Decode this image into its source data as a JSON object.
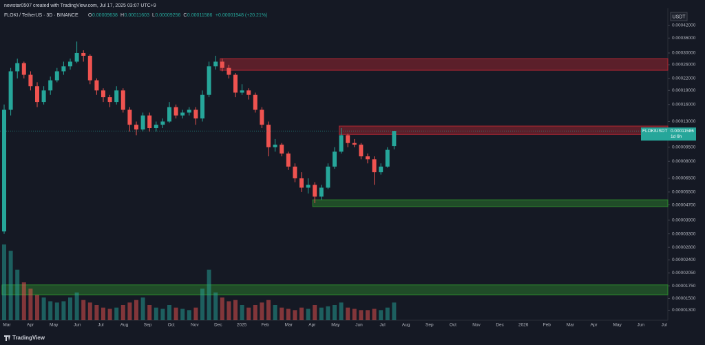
{
  "chart_data": {
    "type": "candlestick",
    "credit": "newstar0507 created with TradingView.com, Jul 17, 2025 03:07 UTC+9",
    "title": "FLOKI / TetherUS · 3D · BINANCE",
    "legend": [
      [
        "O",
        "0.00009638"
      ],
      [
        "H",
        "0.00011603"
      ],
      [
        "L",
        "0.00009256"
      ],
      [
        "C",
        "0.00011586"
      ],
      [
        "",
        "+0.00001948 (+20.21%)"
      ]
    ],
    "currency": "USDT",
    "brand": "TradingView",
    "price_label": {
      "symbol": "FLOKIUSDT",
      "value": {
        "value": 0.00011586,
        "label": "0.00011586"
      },
      "countdown": "1d 6h"
    },
    "log_scale": true,
    "grid": false,
    "up_color": "#26a69a",
    "down_color": "#ef5350",
    "ylim": [
      1.17e-05,
      0.000505
    ],
    "yticks": [
      {
        "value": 0.00042,
        "label": "0.00042000"
      },
      {
        "value": 0.00036,
        "label": "0.00036000"
      },
      {
        "value": 0.0003,
        "label": "0.00030000"
      },
      {
        "value": 0.00026,
        "label": "0.00026000"
      },
      {
        "value": 0.00022,
        "label": "0.00022000"
      },
      {
        "value": 0.00019,
        "label": "0.00019000"
      },
      {
        "value": 0.00016,
        "label": "0.00016000"
      },
      {
        "value": 0.00013,
        "label": "0.00013000"
      },
      {
        "value": 9.5e-05,
        "label": "0.00009500"
      },
      {
        "value": 8e-05,
        "label": "0.00008000"
      },
      {
        "value": 6.5e-05,
        "label": "0.00006500"
      },
      {
        "value": 5.5e-05,
        "label": "0.00005500"
      },
      {
        "value": 4.7e-05,
        "label": "0.00004700"
      },
      {
        "value": 3.9e-05,
        "label": "0.00003900"
      },
      {
        "value": 3.3e-05,
        "label": "0.00003300"
      },
      {
        "value": 2.8e-05,
        "label": "0.00002800"
      },
      {
        "value": 2.4e-05,
        "label": "0.00002400"
      },
      {
        "value": 2.05e-05,
        "label": "0.00002050"
      },
      {
        "value": 1.75e-05,
        "label": "0.00001750"
      },
      {
        "value": 1.5e-05,
        "label": "0.00001500"
      },
      {
        "value": 1.3e-05,
        "label": "0.00001300"
      }
    ],
    "categories": [
      "Mar",
      "Apr",
      "May",
      "Jun",
      "Jul",
      "Aug",
      "Sep",
      "Oct",
      "Nov",
      "Dec",
      "2025",
      "Feb",
      "Mar",
      "Apr",
      "May",
      "Jun",
      "Jul",
      "Aug",
      "Sep",
      "Oct",
      "Nov",
      "Dec",
      "2026",
      "Feb",
      "Mar",
      "Apr",
      "May",
      "Jun",
      "Jul"
    ],
    "candles": [
      [
        3.4e-05,
        0.00016,
        3.3e-05,
        0.00015
      ],
      [
        0.00015,
        0.00025,
        0.00014,
        0.00024
      ],
      [
        0.00024,
        0.00028,
        0.00022,
        0.000265
      ],
      [
        0.000265,
        0.00027,
        0.00022,
        0.00023
      ],
      [
        0.00023,
        0.00024,
        0.00019,
        0.0002
      ],
      [
        0.0002,
        0.00021,
        0.000155,
        0.000165
      ],
      [
        0.000165,
        0.0002,
        0.00016,
        0.00019
      ],
      [
        0.00019,
        0.000225,
        0.00018,
        0.000215
      ],
      [
        0.000215,
        0.00025,
        0.00021,
        0.00024
      ],
      [
        0.00024,
        0.00027,
        0.00023,
        0.000255
      ],
      [
        0.000255,
        0.00028,
        0.000245,
        0.00027
      ],
      [
        0.00027,
        0.000345,
        0.000265,
        0.0003
      ],
      [
        0.0003,
        0.00031,
        0.00027,
        0.00029
      ],
      [
        0.00029,
        0.000295,
        0.000205,
        0.000215
      ],
      [
        0.000215,
        0.00022,
        0.00018,
        0.00019
      ],
      [
        0.00019,
        0.000195,
        0.000165,
        0.000175
      ],
      [
        0.000175,
        0.00018,
        0.000155,
        0.000165
      ],
      [
        0.000165,
        0.0002,
        0.00016,
        0.00019
      ],
      [
        0.00019,
        0.000195,
        0.000145,
        0.00015
      ],
      [
        0.00015,
        0.000155,
        0.000115,
        0.000125
      ],
      [
        0.000125,
        0.00013,
        0.00011,
        0.000118
      ],
      [
        0.000118,
        0.000145,
        0.000115,
        0.00014
      ],
      [
        0.00014,
        0.000145,
        0.000115,
        0.00012
      ],
      [
        0.00012,
        0.00013,
        0.000115,
        0.000125
      ],
      [
        0.000125,
        0.000135,
        0.00012,
        0.00013
      ],
      [
        0.00013,
        0.000165,
        0.000128,
        0.000155
      ],
      [
        0.000155,
        0.00016,
        0.000135,
        0.00014
      ],
      [
        0.00014,
        0.00015,
        0.000135,
        0.000145
      ],
      [
        0.000145,
        0.000155,
        0.00014,
        0.00015
      ],
      [
        0.00015,
        0.000155,
        0.000125,
        0.000135
      ],
      [
        0.000135,
        0.00019,
        0.00013,
        0.00018
      ],
      [
        0.00018,
        0.00027,
        0.000175,
        0.000255
      ],
      [
        0.000255,
        0.00029,
        0.000245,
        0.00027
      ],
      [
        0.00027,
        0.00028,
        0.00024,
        0.00025
      ],
      [
        0.00025,
        0.00026,
        0.00022,
        0.00023
      ],
      [
        0.00023,
        0.000235,
        0.000175,
        0.000185
      ],
      [
        0.000185,
        0.000205,
        0.00018,
        0.00019
      ],
      [
        0.00019,
        0.000195,
        0.00017,
        0.00018
      ],
      [
        0.00018,
        0.000185,
        0.000145,
        0.00015
      ],
      [
        0.00015,
        0.000155,
        0.00012,
        0.000125
      ],
      [
        0.000125,
        0.00013,
        8.5e-05,
        9.5e-05
      ],
      [
        9.5e-05,
        0.000105,
        9e-05,
        9.8e-05
      ],
      [
        9.8e-05,
        0.0001,
        8.5e-05,
        8.8e-05
      ],
      [
        8.8e-05,
        9e-05,
        7.2e-05,
        7.5e-05
      ],
      [
        7.5e-05,
        7.8e-05,
        6.2e-05,
        6.5e-05
      ],
      [
        6.5e-05,
        7e-05,
        5.5e-05,
        5.8e-05
      ],
      [
        5.8e-05,
        6.5e-05,
        5.4e-05,
        6e-05
      ],
      [
        6e-05,
        6.2e-05,
        4.8e-05,
        5.2e-05
      ],
      [
        5.2e-05,
        6e-05,
        5e-05,
        5.8e-05
      ],
      [
        5.8e-05,
        7.8e-05,
        5.7e-05,
        7.5e-05
      ],
      [
        7.5e-05,
        9.5e-05,
        7.3e-05,
        9e-05
      ],
      [
        9e-05,
        0.00012,
        8.8e-05,
        0.00011
      ],
      [
        0.00011,
        0.000112,
        9.5e-05,
        0.0001
      ],
      [
        0.0001,
        0.000105,
        9.5e-05,
        9.8e-05
      ],
      [
        9.8e-05,
        0.0001,
        8.2e-05,
        8.5e-05
      ],
      [
        8.5e-05,
        8.8e-05,
        7.8e-05,
        8.2e-05
      ],
      [
        8.2e-05,
        8.5e-05,
        6e-05,
        7e-05
      ],
      [
        7e-05,
        7.8e-05,
        6.8e-05,
        7.5e-05
      ],
      [
        7.5e-05,
        9.5e-05,
        7.4e-05,
        9.2e-05
      ],
      [
        9.638e-05,
        0.00011603,
        9.256e-05,
        0.00011586
      ]
    ],
    "volume": [
      60,
      55,
      40,
      30,
      25,
      20,
      18,
      15,
      14,
      15,
      18,
      22,
      16,
      14,
      12,
      10,
      9,
      10,
      12,
      14,
      16,
      18,
      12,
      10,
      9,
      12,
      10,
      9,
      8,
      10,
      25,
      40,
      22,
      18,
      15,
      16,
      12,
      10,
      12,
      14,
      16,
      12,
      10,
      9,
      8,
      10,
      9,
      12,
      10,
      11,
      12,
      14,
      10,
      9,
      8,
      8,
      9,
      8,
      10,
      14
    ],
    "zones": [
      {
        "low": 0.000243,
        "high": 0.00028,
        "from": 33,
        "color": "#b22833"
      },
      {
        "low": 0.000111,
        "high": 0.000123,
        "from": 51,
        "color": "#b22833"
      },
      {
        "low": 4.6e-05,
        "high": 5e-05,
        "from": 47,
        "color": "#2e8b2e"
      },
      {
        "low": 1.57e-05,
        "high": 1.77e-05,
        "from": 0,
        "color": "#2e8b2e"
      }
    ]
  }
}
